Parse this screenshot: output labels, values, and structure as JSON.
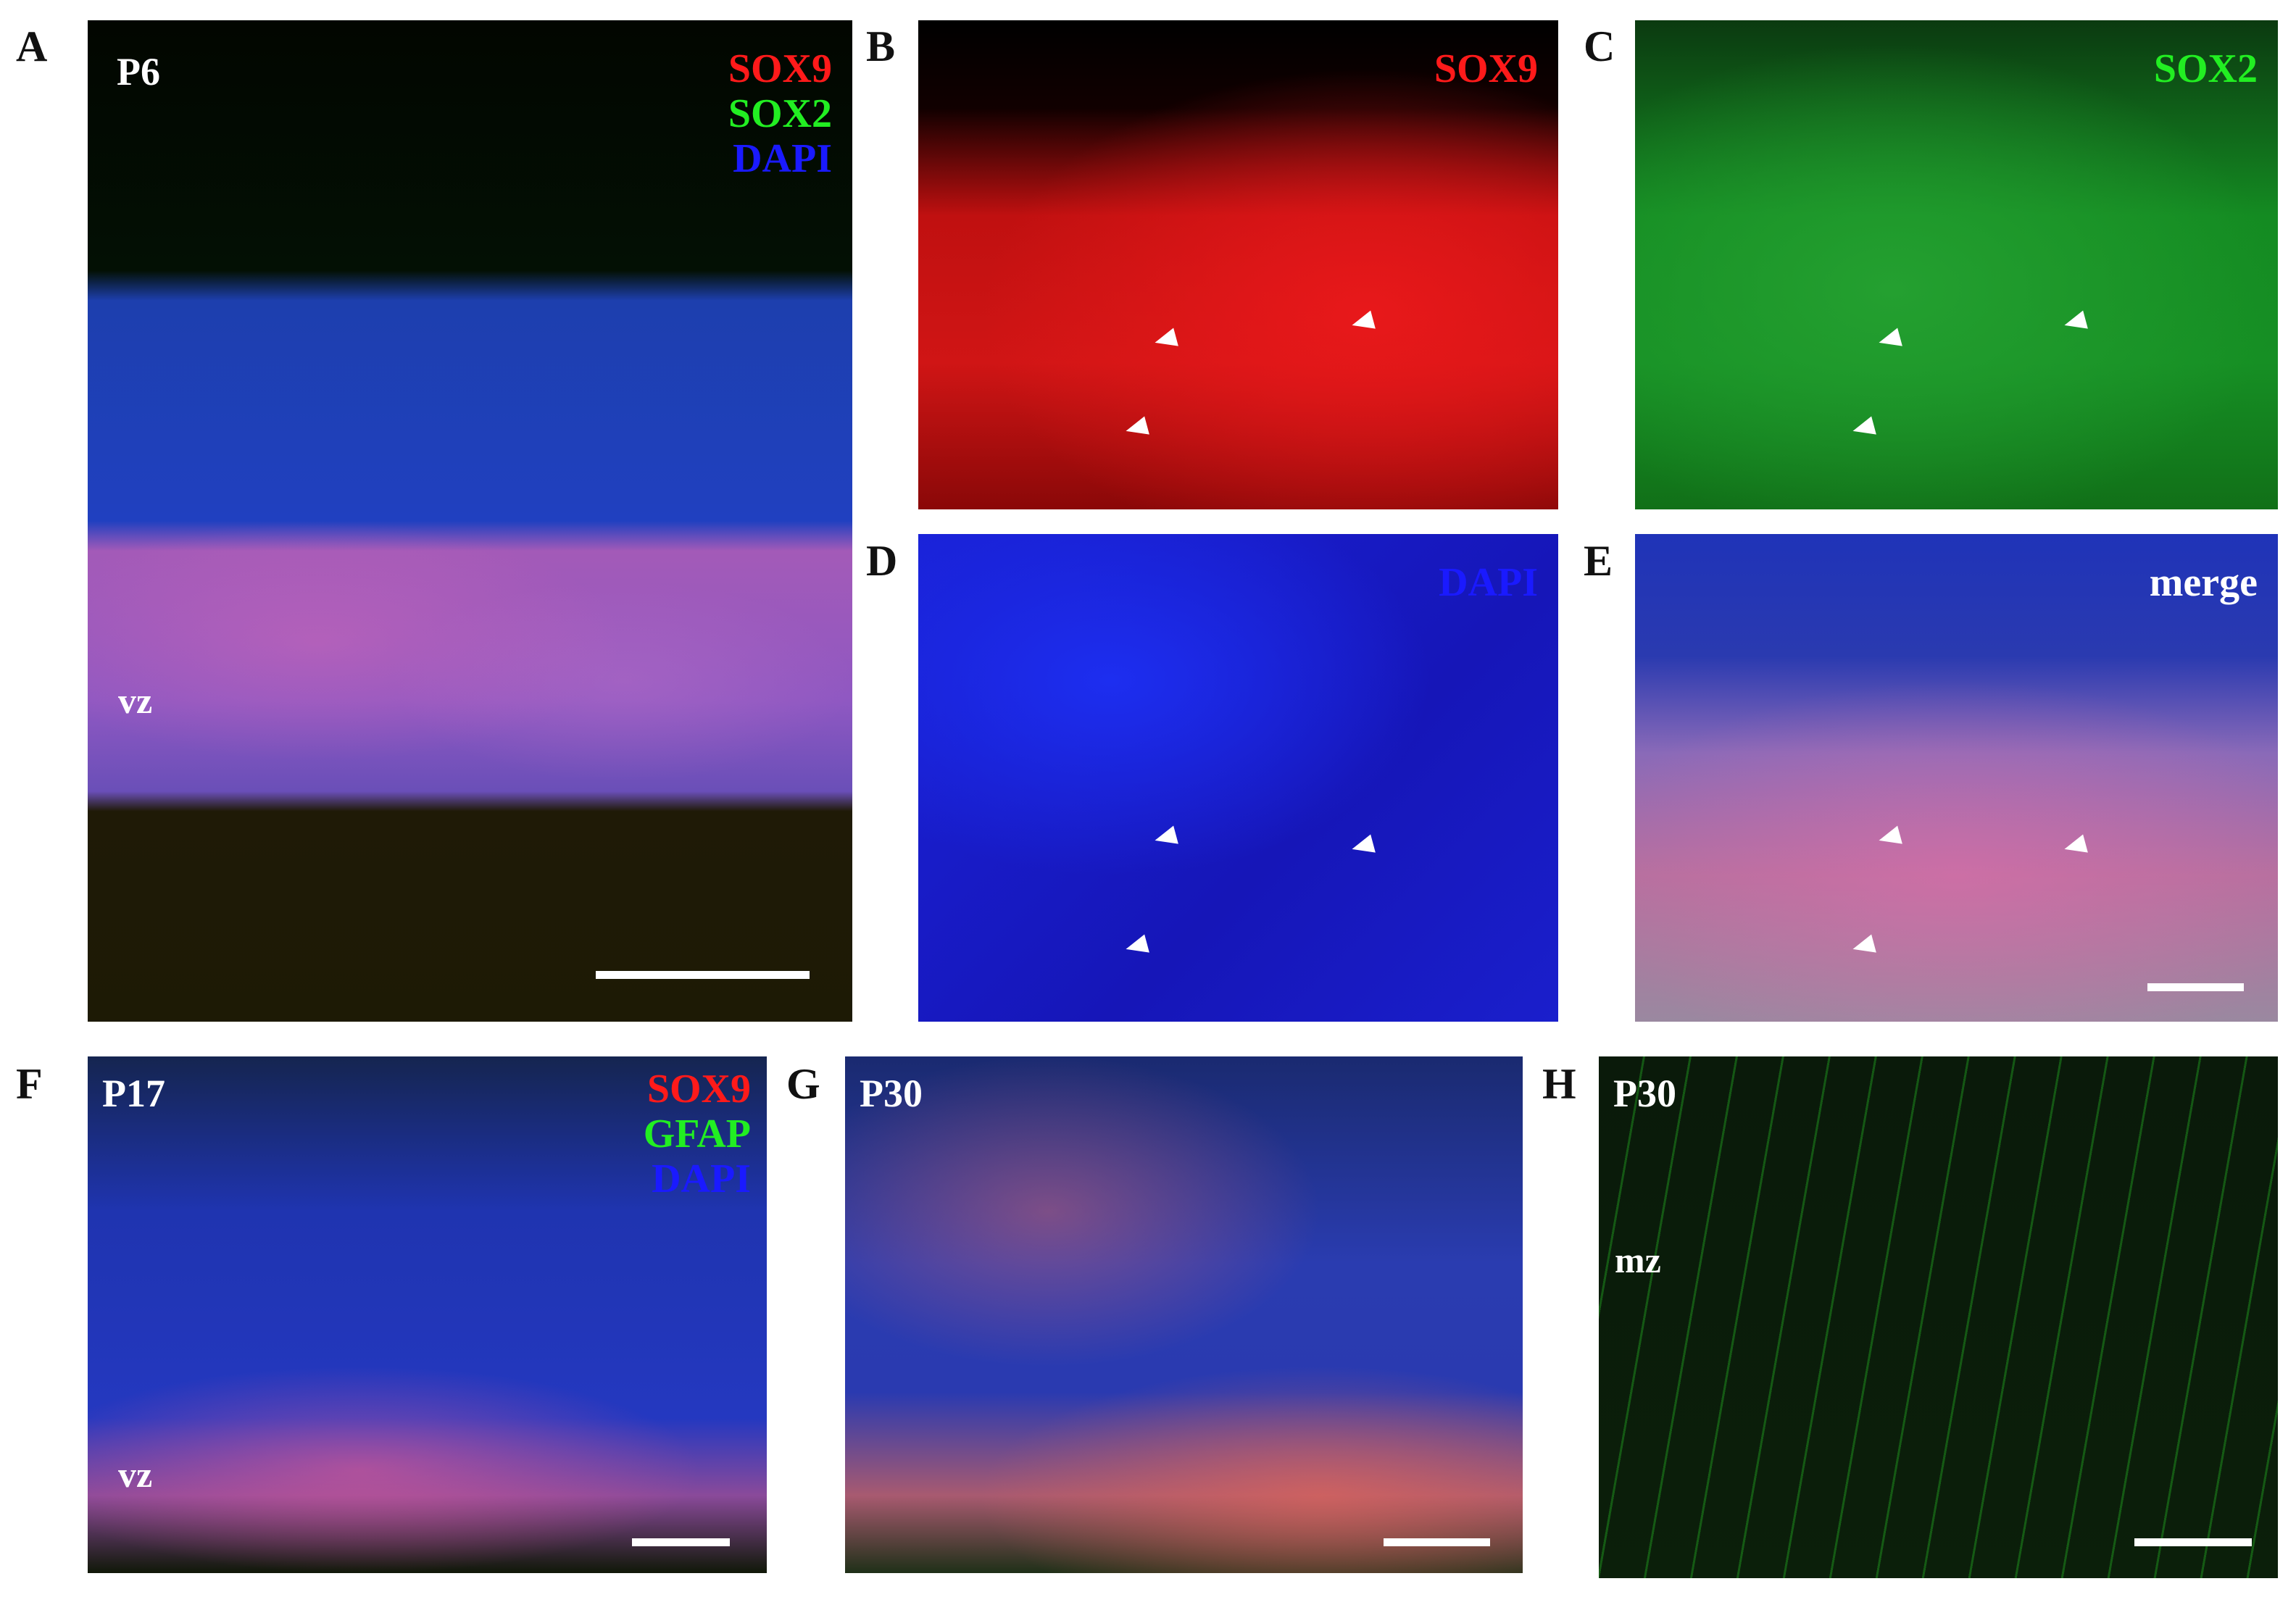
{
  "panels": {
    "A": {
      "letter": "A",
      "label": "P6",
      "channels": [
        "SOX9",
        "SOX2",
        "DAPI"
      ],
      "zone_label": "vz"
    },
    "B": {
      "letter": "B",
      "channel": "SOX9"
    },
    "C": {
      "letter": "C",
      "channel": "SOX2"
    },
    "D": {
      "letter": "D",
      "channel": "DAPI"
    },
    "E": {
      "letter": "E",
      "channel": "merge"
    },
    "F": {
      "letter": "F",
      "label": "P17",
      "channels": [
        "SOX9",
        "GFAP",
        "DAPI"
      ],
      "zone_label": "vz"
    },
    "G": {
      "letter": "G",
      "label": "P30"
    },
    "H": {
      "letter": "H",
      "label": "P30",
      "zone_label": "mz"
    }
  },
  "colors": {
    "red_channel": "#ff1a1a",
    "green_channel": "#22ee22",
    "blue_channel": "#1a1aff",
    "label": "#ffffff"
  }
}
